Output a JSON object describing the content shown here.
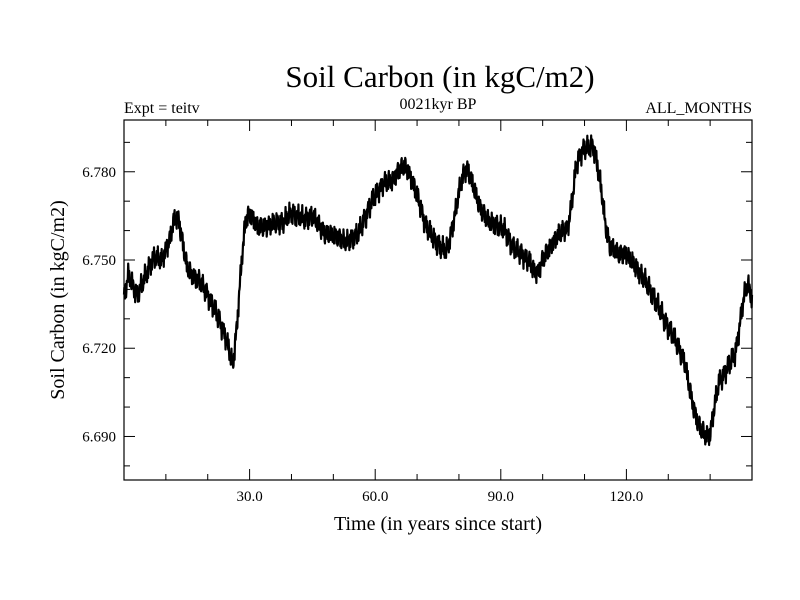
{
  "chart_data": {
    "type": "line",
    "title": "Soil Carbon (in kgC/m2)",
    "subtitle": "0021kyr BP",
    "left_label": "Expt = teitv",
    "right_label": "ALL_MONTHS",
    "xlabel": "Time (in years since start)",
    "ylabel": "Soil Carbon (in kgC/m2)",
    "xlim": [
      0,
      150
    ],
    "ylim": [
      6.6752,
      6.7976
    ],
    "x_ticks": [
      30,
      60,
      90,
      120
    ],
    "x_tick_labels": [
      "30.0",
      "60.0",
      "90.0",
      "120.0"
    ],
    "y_ticks": [
      6.69,
      6.72,
      6.75,
      6.78
    ],
    "y_tick_labels": [
      "6.690",
      "6.720",
      "6.750",
      "6.780"
    ],
    "grid": false,
    "series": [
      {
        "name": "Soil Carbon",
        "x": [
          0,
          1,
          3,
          5,
          7,
          9,
          11,
          12,
          13,
          14,
          15,
          16,
          18,
          20,
          22,
          24,
          25,
          26,
          27,
          28,
          29,
          30,
          32,
          35,
          38,
          40,
          43,
          45,
          48,
          51,
          53,
          56,
          58,
          60,
          62,
          64,
          66,
          67,
          68,
          70,
          72,
          74,
          76,
          77,
          78,
          79,
          80,
          81,
          82,
          83,
          85,
          87,
          89,
          91,
          93,
          95,
          97,
          98,
          99,
          100,
          102,
          104,
          106,
          107,
          108,
          109,
          110,
          111,
          112,
          113,
          114,
          115,
          116,
          118,
          120,
          122,
          124,
          126,
          128,
          130,
          132,
          134,
          135,
          136,
          137,
          138,
          139,
          140,
          141,
          142,
          144,
          146,
          147,
          148,
          149,
          150
        ],
        "values": [
          6.737,
          6.745,
          6.738,
          6.744,
          6.751,
          6.75,
          6.757,
          6.764,
          6.764,
          6.756,
          6.748,
          6.745,
          6.743,
          6.738,
          6.732,
          6.725,
          6.72,
          6.714,
          6.728,
          6.748,
          6.763,
          6.766,
          6.761,
          6.762,
          6.763,
          6.766,
          6.764,
          6.765,
          6.759,
          6.758,
          6.756,
          6.759,
          6.766,
          6.772,
          6.776,
          6.777,
          6.781,
          6.782,
          6.78,
          6.772,
          6.762,
          6.757,
          6.754,
          6.753,
          6.758,
          6.765,
          6.773,
          6.779,
          6.781,
          6.777,
          6.768,
          6.763,
          6.762,
          6.76,
          6.754,
          6.752,
          6.749,
          6.746,
          6.746,
          6.75,
          6.755,
          6.759,
          6.761,
          6.77,
          6.782,
          6.786,
          6.788,
          6.788,
          6.789,
          6.783,
          6.774,
          6.762,
          6.755,
          6.752,
          6.752,
          6.748,
          6.744,
          6.739,
          6.733,
          6.727,
          6.722,
          6.715,
          6.707,
          6.7,
          6.695,
          6.692,
          6.69,
          6.691,
          6.7,
          6.708,
          6.713,
          6.718,
          6.727,
          6.737,
          6.742,
          6.737
        ]
      }
    ]
  }
}
